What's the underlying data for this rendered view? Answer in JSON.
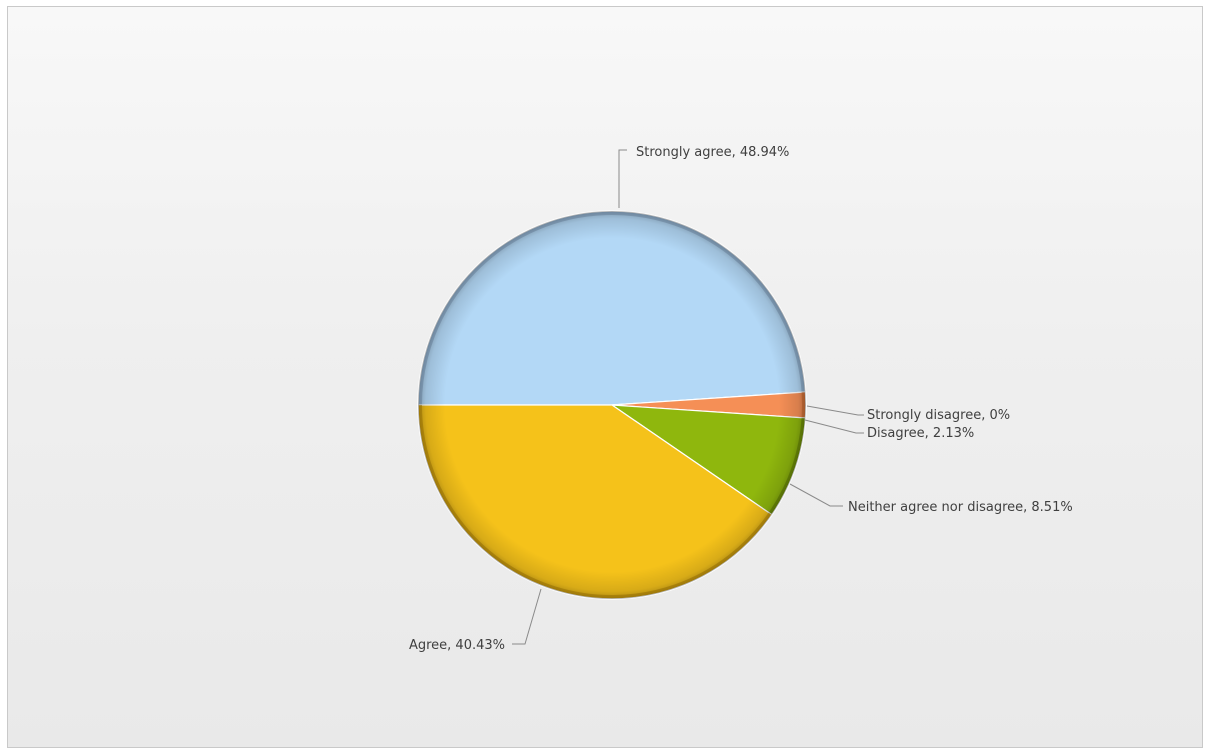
{
  "chart_data": {
    "type": "pie",
    "title": "",
    "slices": [
      {
        "label": "Strongly agree",
        "value": 48.94,
        "color": "#b3d8f6",
        "edge": "#7f9fbd"
      },
      {
        "label": "Strongly disagree",
        "value": 0,
        "color": "#e03a2a",
        "edge": "#a02818"
      },
      {
        "label": "Disagree",
        "value": 2.13,
        "color": "#f58f56",
        "edge": "#c46428"
      },
      {
        "label": "Neither agree nor disagree",
        "value": 8.51,
        "color": "#8fb70d",
        "edge": "#5e7c05"
      },
      {
        "label": "Agree",
        "value": 40.43,
        "color": "#f5c21a",
        "edge": "#b98a06"
      }
    ],
    "data_labels": [
      "Strongly agree, 48.94%",
      "Strongly disagree, 0%",
      "Disagree, 2.13%",
      "Neither agree nor disagree, 8.51%",
      "Agree, 40.43%"
    ],
    "legend": "none"
  }
}
